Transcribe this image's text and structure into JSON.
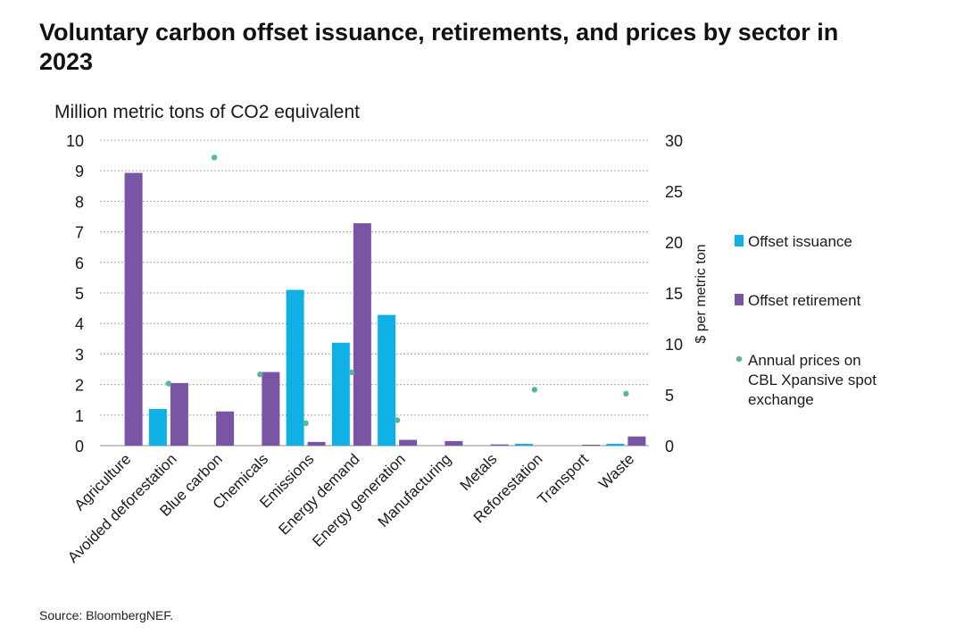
{
  "title": "Voluntary carbon offset issuance, retirements, and prices by sector in 2023",
  "source": "Source: BloombergNEF.",
  "colors": {
    "issuance": "#0fb0e6",
    "retirement": "#7a55a6",
    "price": "#5ab5a0",
    "grid": "#a8a8a8"
  },
  "chart_data": {
    "type": "bar",
    "ylabel": "Million metric tons of CO2 equivalent",
    "y2label": "$ per metric ton",
    "ylim": [
      0,
      10
    ],
    "y2lim": [
      0,
      30
    ],
    "yticks": [
      0,
      1,
      2,
      3,
      4,
      5,
      6,
      7,
      8,
      9,
      10
    ],
    "y2ticks": [
      0,
      5,
      10,
      15,
      20,
      25,
      30
    ],
    "grid": true,
    "legend_position": "right",
    "categories": [
      "Agriculture",
      "Avoided deforestation",
      "Blue carbon",
      "Chemicals",
      "Emissions",
      "Energy demand",
      "Energy generation",
      "Manufacturing",
      "Metals",
      "Reforestation",
      "Transport",
      "Waste"
    ],
    "series": [
      {
        "name": "Offset issuance",
        "kind": "bar",
        "axis": "left",
        "values": [
          0,
          1.2,
          0,
          0,
          5.1,
          3.37,
          4.28,
          0,
          0,
          0.06,
          0,
          0.06
        ]
      },
      {
        "name": "Offset retirement",
        "kind": "bar",
        "axis": "left",
        "values": [
          8.93,
          2.05,
          1.12,
          2.41,
          0.12,
          7.28,
          0.19,
          0.15,
          0.04,
          0,
          0.03,
          0.3
        ]
      },
      {
        "name": "Annual prices on CBL Xpansive spot exchange",
        "kind": "scatter",
        "axis": "right",
        "values": [
          null,
          6.1,
          28.3,
          7.0,
          2.2,
          7.2,
          2.5,
          null,
          null,
          5.5,
          null,
          5.1
        ]
      }
    ]
  }
}
